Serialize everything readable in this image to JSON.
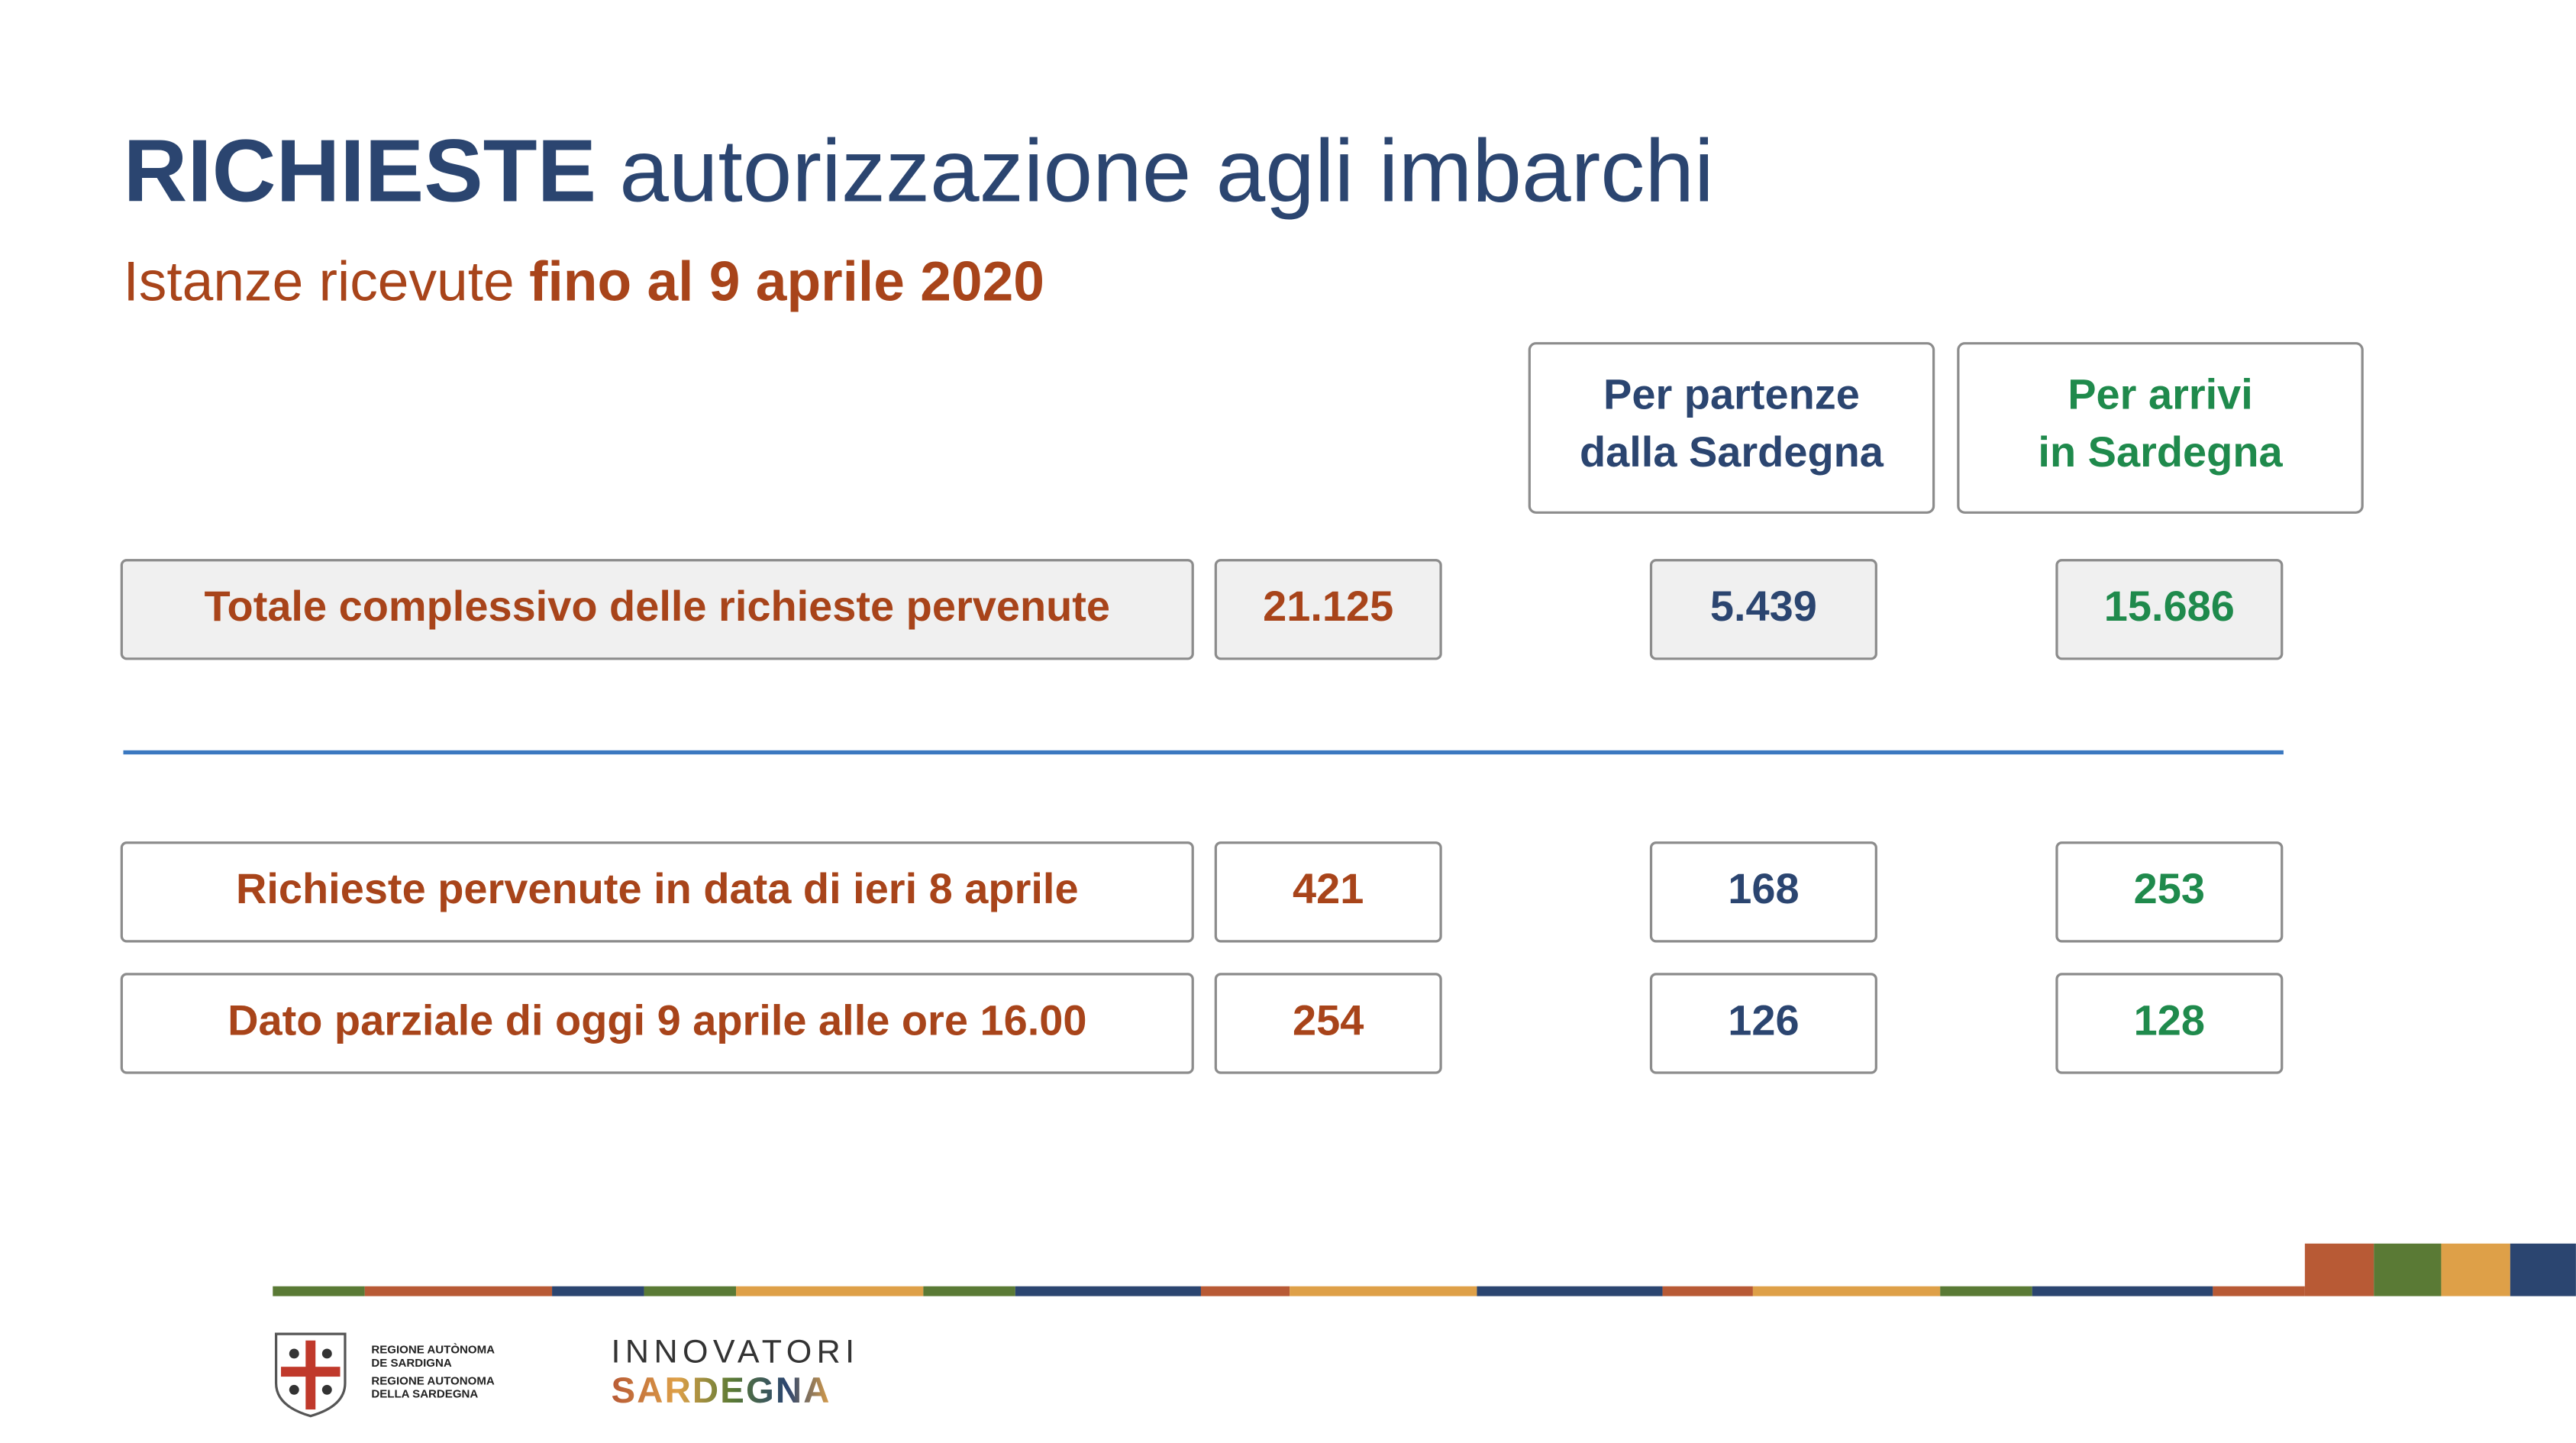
{
  "header": {
    "title_bold": "RICHIESTE",
    "title_rest": "autorizzazione agli imbarchi",
    "subtitle_regular": "Istanze ricevute",
    "subtitle_bold": "fino al 9 aprile 2020"
  },
  "table": {
    "columns": [
      {
        "lines": [
          "Per partenze",
          "dalla Sardegna"
        ]
      },
      {
        "lines": [
          "Per arrivi",
          "in Sardegna"
        ]
      }
    ],
    "rows": [
      [
        "Totale complessivo delle richieste pervenute",
        "21.125",
        "5.439",
        "15.686"
      ],
      [
        "Richieste pervenute in data di ieri 8 aprile",
        "421",
        "168",
        "253"
      ],
      [
        "Dato parziale di oggi 9 aprile alle ore 16.00",
        "254",
        "126",
        "128"
      ]
    ]
  },
  "footer": {
    "region_lines": [
      "REGIONE AUTÒNOMA",
      "DE SARDIGNA",
      "REGIONE AUTONOMA",
      "DELLA SARDEGNA"
    ],
    "brand_top": "INNOVATORI",
    "brand_bottom": "SARDEGNA"
  }
}
